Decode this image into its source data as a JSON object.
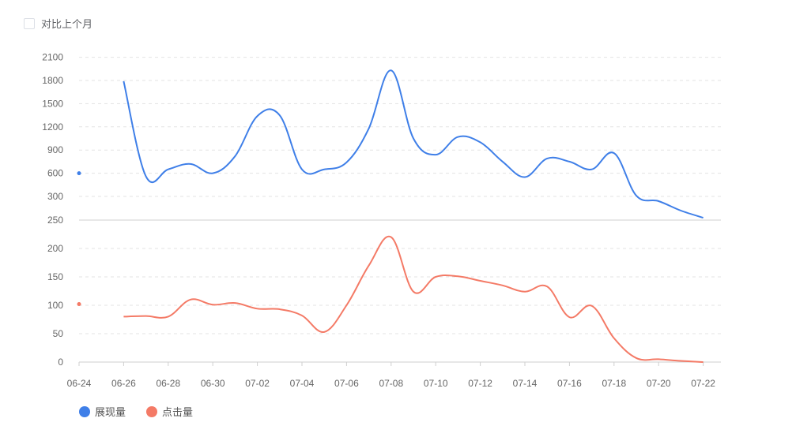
{
  "controls": {
    "compare_label": "对比上个月"
  },
  "colors": {
    "series1": "#3f7fe8",
    "series2": "#f47a66",
    "grid": "#e3e3e3",
    "axis": "#cfcfcf"
  },
  "chart_data": [
    {
      "type": "line",
      "x_ticks": [
        "06-24",
        "06-26",
        "06-28",
        "06-30",
        "07-02",
        "07-04",
        "07-06",
        "07-08",
        "07-10",
        "07-12",
        "07-14",
        "07-16",
        "07-18",
        "07-20",
        "07-22"
      ],
      "x": [
        "06-24",
        "06-25",
        "06-26",
        "06-27",
        "06-28",
        "06-29",
        "06-30",
        "07-01",
        "07-02",
        "07-03",
        "07-04",
        "07-05",
        "07-06",
        "07-07",
        "07-08",
        "07-09",
        "07-10",
        "07-11",
        "07-12",
        "07-13",
        "07-14",
        "07-15",
        "07-16",
        "07-17",
        "07-18",
        "07-19",
        "07-20",
        "07-21",
        "07-22"
      ],
      "y_ticks": [
        "250",
        "300",
        "600",
        "900",
        "1200",
        "1500",
        "1800",
        "2100"
      ],
      "series": [
        {
          "name": "展现量",
          "values": [
            600,
            null,
            1790,
            560,
            650,
            720,
            600,
            820,
            1340,
            1350,
            650,
            650,
            740,
            1180,
            1930,
            1050,
            840,
            1070,
            1000,
            750,
            550,
            790,
            750,
            650,
            860,
            310,
            290,
            270,
            255
          ]
        }
      ]
    },
    {
      "type": "line",
      "y_ticks": [
        "0",
        "50",
        "100",
        "150",
        "200",
        "250"
      ],
      "series": [
        {
          "name": "点击量",
          "values": [
            102,
            null,
            80,
            81,
            80,
            110,
            101,
            104,
            94,
            93,
            82,
            53,
            100,
            170,
            220,
            124,
            150,
            151,
            143,
            135,
            124,
            133,
            79,
            99,
            42,
            7,
            5,
            2,
            0
          ]
        }
      ]
    }
  ],
  "legend": [
    {
      "label": "展现量"
    },
    {
      "label": "点击量"
    }
  ]
}
